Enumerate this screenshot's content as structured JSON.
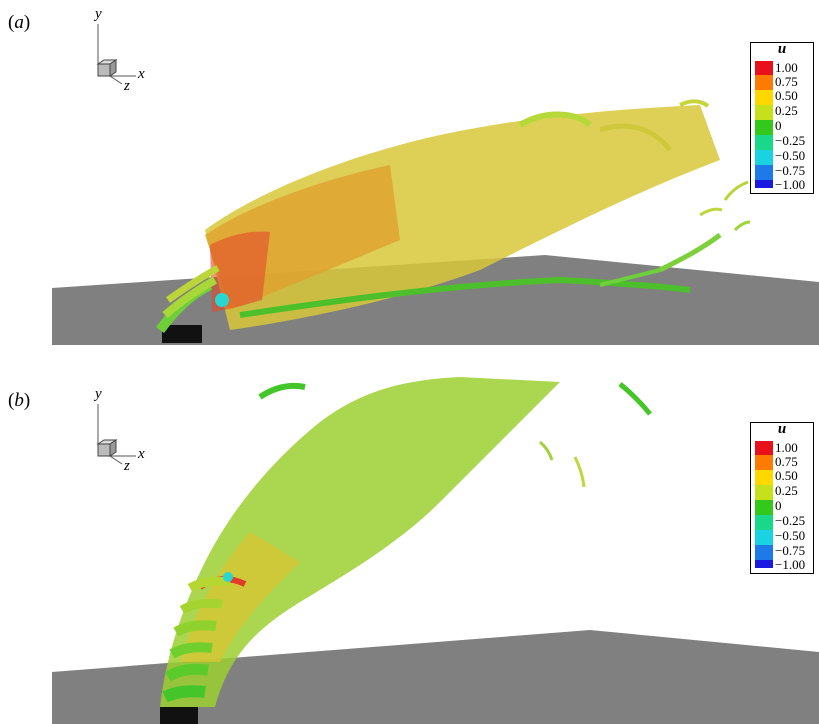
{
  "panels": [
    {
      "label_open": "(",
      "label_letter": "a",
      "label_close": ")"
    },
    {
      "label_open": "(",
      "label_letter": "b",
      "label_close": ")"
    }
  ],
  "axes": {
    "x": "x",
    "y": "y",
    "z": "z"
  },
  "legend": {
    "title": "u",
    "ticks": [
      "1.00",
      "0.75",
      "0.50",
      "0.25",
      "0",
      "−0.25",
      "−0.50",
      "−0.75",
      "−1.00"
    ],
    "colors": [
      "#e8101a",
      "#ff7a00",
      "#ffd800",
      "#c6e01a",
      "#34c81c",
      "#1ad88a",
      "#1ad2e0",
      "#1e7ae8",
      "#1a1ae0"
    ]
  }
}
